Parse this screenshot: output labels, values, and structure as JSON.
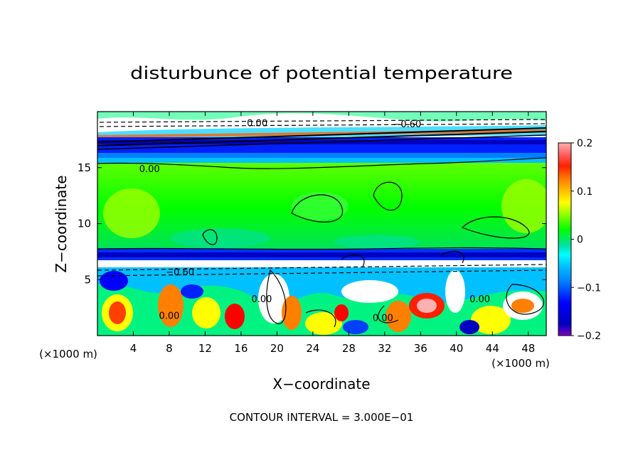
{
  "chart_data": {
    "type": "heatmap",
    "title": "disturbunce of potential temperature",
    "xlabel": "X−coordinate",
    "ylabel": "Z−coordinate",
    "x_unit_left": "(×1000 m)",
    "x_unit_right": "(×1000 m)",
    "xlim": [
      0,
      50
    ],
    "ylim": [
      0,
      20
    ],
    "x_ticks": [
      4,
      8,
      12,
      16,
      20,
      24,
      28,
      32,
      36,
      40,
      44,
      48
    ],
    "y_ticks": [
      5,
      10,
      15
    ],
    "colorbar": {
      "range": [
        -0.2,
        0.2
      ],
      "tick_values": [
        0.2,
        0.1,
        0,
        -0.1,
        -0.2
      ],
      "tick_labels": [
        "0.2",
        "0.1",
        "0",
        "−0.1",
        "−0.2"
      ],
      "colors": [
        "#ffb0b0",
        "#ff4040",
        "#ff0000",
        "#ff8000",
        "#ffc000",
        "#ffff00",
        "#c0ff00",
        "#60ff00",
        "#00ff00",
        "#00e060",
        "#00ffc0",
        "#00ffff",
        "#00c0ff",
        "#0080ff",
        "#0040ff",
        "#0000ff",
        "#0000c0",
        "#8000c0"
      ]
    },
    "layers": [
      {
        "z": [
          0,
          6.5
        ],
        "value": -0.05,
        "note": "turbulent lower layer"
      },
      {
        "z": [
          6.5,
          7.4
        ],
        "value": -0.2
      },
      {
        "z": [
          7.4,
          16.0
        ],
        "value": 0.02
      },
      {
        "z": [
          16.0,
          17.5
        ],
        "value": -0.18
      },
      {
        "z": [
          17.5,
          20
        ],
        "value": -0.02
      }
    ],
    "contour_labels": [
      {
        "x": 5.8,
        "z": 14.6,
        "text": "0.00"
      },
      {
        "x": 9.2,
        "z": 5.4,
        "text": "−0.60"
      },
      {
        "x": 34.5,
        "z": 18.6,
        "text": "−0.60"
      },
      {
        "x": 17.8,
        "z": 18.7,
        "text": "0.00"
      },
      {
        "x": 18.3,
        "z": 3.0,
        "text": "0.00"
      },
      {
        "x": 31.8,
        "z": 1.3,
        "text": "0.00"
      },
      {
        "x": 8.0,
        "z": 1.5,
        "text": "0.00"
      },
      {
        "x": 42.6,
        "z": 3.0,
        "text": "0.00"
      }
    ],
    "contour_interval_label": "CONTOUR INTERVAL = 3.000E−01"
  }
}
